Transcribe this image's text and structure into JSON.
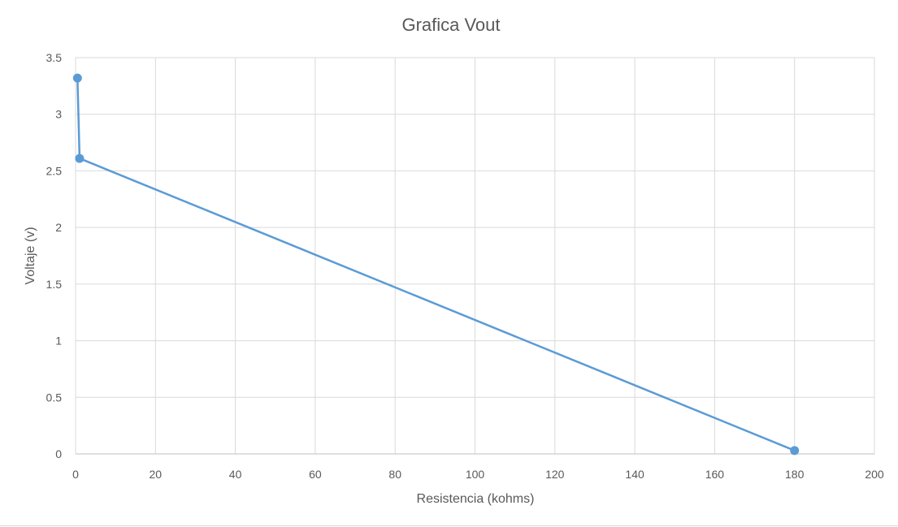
{
  "chart_data": {
    "type": "scatter",
    "title": "Grafica Vout",
    "xlabel": "Resistencia (kohms)",
    "ylabel": "Voltaje (v)",
    "xlim": [
      0,
      200
    ],
    "ylim": [
      0,
      3.5
    ],
    "x_ticks": [
      "0",
      "20",
      "40",
      "60",
      "80",
      "100",
      "120",
      "140",
      "160",
      "180",
      "200"
    ],
    "y_ticks": [
      "0",
      "0.5",
      "1",
      "1.5",
      "2",
      "2.5",
      "3",
      "3.5"
    ],
    "grid": true,
    "legend": "none",
    "lines": "straight with markers",
    "color": "#5b9bd5",
    "points": [
      {
        "x": 0.47,
        "y": 3.32
      },
      {
        "x": 1.0,
        "y": 2.61
      },
      {
        "x": 180,
        "y": 0.03
      }
    ]
  }
}
